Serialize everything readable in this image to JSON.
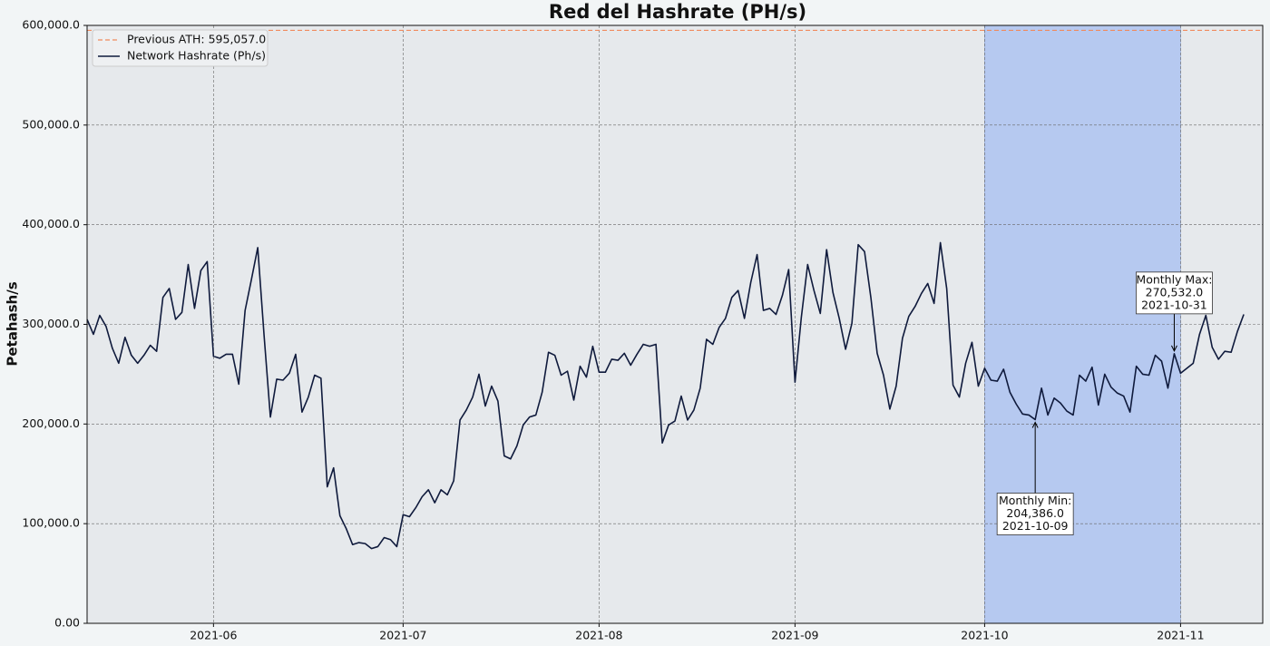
{
  "chart_data": {
    "type": "line",
    "title": "Red del Hashrate (PH/s)",
    "ylabel": "Petahash/s",
    "x": [
      "2021-05-12",
      "2021-05-13",
      "2021-05-14",
      "2021-05-15",
      "2021-05-16",
      "2021-05-17",
      "2021-05-18",
      "2021-05-19",
      "2021-05-20",
      "2021-05-21",
      "2021-05-22",
      "2021-05-23",
      "2021-05-24",
      "2021-05-25",
      "2021-05-26",
      "2021-05-27",
      "2021-05-28",
      "2021-05-29",
      "2021-05-30",
      "2021-05-31",
      "2021-06-01",
      "2021-06-02",
      "2021-06-03",
      "2021-06-04",
      "2021-06-05",
      "2021-06-06",
      "2021-06-07",
      "2021-06-08",
      "2021-06-09",
      "2021-06-10",
      "2021-06-11",
      "2021-06-12",
      "2021-06-13",
      "2021-06-14",
      "2021-06-15",
      "2021-06-16",
      "2021-06-17",
      "2021-06-18",
      "2021-06-19",
      "2021-06-20",
      "2021-06-21",
      "2021-06-22",
      "2021-06-23",
      "2021-06-24",
      "2021-06-25",
      "2021-06-26",
      "2021-06-27",
      "2021-06-28",
      "2021-06-29",
      "2021-06-30",
      "2021-07-01",
      "2021-07-02",
      "2021-07-03",
      "2021-07-04",
      "2021-07-05",
      "2021-07-06",
      "2021-07-07",
      "2021-07-08",
      "2021-07-09",
      "2021-07-10",
      "2021-07-11",
      "2021-07-12",
      "2021-07-13",
      "2021-07-14",
      "2021-07-15",
      "2021-07-16",
      "2021-07-17",
      "2021-07-18",
      "2021-07-19",
      "2021-07-20",
      "2021-07-21",
      "2021-07-22",
      "2021-07-23",
      "2021-07-24",
      "2021-07-25",
      "2021-07-26",
      "2021-07-27",
      "2021-07-28",
      "2021-07-29",
      "2021-07-30",
      "2021-07-31",
      "2021-08-01",
      "2021-08-02",
      "2021-08-03",
      "2021-08-04",
      "2021-08-05",
      "2021-08-06",
      "2021-08-07",
      "2021-08-08",
      "2021-08-09",
      "2021-08-10",
      "2021-08-11",
      "2021-08-12",
      "2021-08-13",
      "2021-08-14",
      "2021-08-15",
      "2021-08-16",
      "2021-08-17",
      "2021-08-18",
      "2021-08-19",
      "2021-08-20",
      "2021-08-21",
      "2021-08-22",
      "2021-08-23",
      "2021-08-24",
      "2021-08-25",
      "2021-08-26",
      "2021-08-27",
      "2021-08-28",
      "2021-08-29",
      "2021-08-30",
      "2021-08-31",
      "2021-09-01",
      "2021-09-02",
      "2021-09-03",
      "2021-09-04",
      "2021-09-05",
      "2021-09-06",
      "2021-09-07",
      "2021-09-08",
      "2021-09-09",
      "2021-09-10",
      "2021-09-11",
      "2021-09-12",
      "2021-09-13",
      "2021-09-14",
      "2021-09-15",
      "2021-09-16",
      "2021-09-17",
      "2021-09-18",
      "2021-09-19",
      "2021-09-20",
      "2021-09-21",
      "2021-09-22",
      "2021-09-23",
      "2021-09-24",
      "2021-09-25",
      "2021-09-26",
      "2021-09-27",
      "2021-09-28",
      "2021-09-29",
      "2021-09-30",
      "2021-10-01",
      "2021-10-02",
      "2021-10-03",
      "2021-10-04",
      "2021-10-05",
      "2021-10-06",
      "2021-10-07",
      "2021-10-08",
      "2021-10-09",
      "2021-10-10",
      "2021-10-11",
      "2021-10-12",
      "2021-10-13",
      "2021-10-14",
      "2021-10-15",
      "2021-10-16",
      "2021-10-17",
      "2021-10-18",
      "2021-10-19",
      "2021-10-20",
      "2021-10-21",
      "2021-10-22",
      "2021-10-23",
      "2021-10-24",
      "2021-10-25",
      "2021-10-26",
      "2021-10-27",
      "2021-10-28",
      "2021-10-29",
      "2021-10-30",
      "2021-10-31",
      "2021-11-01",
      "2021-11-02",
      "2021-11-03",
      "2021-11-04",
      "2021-11-05",
      "2021-11-06",
      "2021-11-07",
      "2021-11-08",
      "2021-11-09",
      "2021-11-10",
      "2021-11-11"
    ],
    "series": [
      {
        "name": "Network Hashrate (Ph/s)",
        "color": "#0f1a3c",
        "values": [
          305000,
          290000,
          309000,
          298000,
          276000,
          261000,
          287000,
          269000,
          261000,
          269000,
          279000,
          273000,
          327000,
          336000,
          305000,
          312000,
          360000,
          316000,
          354000,
          363000,
          268000,
          266000,
          270000,
          270000,
          240000,
          314000,
          345000,
          377000,
          289000,
          207000,
          245000,
          244000,
          251000,
          270000,
          212000,
          227000,
          249000,
          246000,
          137000,
          156000,
          108000,
          95000,
          79000,
          81000,
          80000,
          75000,
          77000,
          86000,
          84000,
          77000,
          109000,
          107000,
          116000,
          127000,
          134000,
          121000,
          134000,
          129000,
          143000,
          204000,
          214000,
          227000,
          250000,
          218000,
          238000,
          223000,
          168000,
          165000,
          178000,
          199000,
          207000,
          209000,
          232000,
          272000,
          269000,
          249000,
          253000,
          224000,
          258000,
          247000,
          278000,
          252000,
          252000,
          265000,
          264000,
          271000,
          259000,
          270000,
          280000,
          278000,
          280000,
          181000,
          199000,
          203000,
          228000,
          204000,
          214000,
          236000,
          285000,
          280000,
          297000,
          306000,
          327000,
          334000,
          306000,
          342000,
          370000,
          314000,
          316000,
          310000,
          329000,
          355000,
          242000,
          307000,
          360000,
          334000,
          311000,
          375000,
          332000,
          306000,
          275000,
          301000,
          380000,
          373000,
          327000,
          271000,
          249000,
          215000,
          238000,
          286000,
          308000,
          318000,
          331000,
          341000,
          321000,
          382000,
          336000,
          239000,
          227000,
          261000,
          282000,
          238000,
          256000,
          244000,
          243000,
          255000,
          232000,
          220000,
          210000,
          209000,
          204386,
          236000,
          209000,
          226000,
          221000,
          213000,
          209000,
          249000,
          243000,
          257000,
          219000,
          250000,
          237000,
          231000,
          228000,
          212000,
          258000,
          250000,
          249000,
          269000,
          263000,
          236000,
          270532,
          251000,
          256000,
          261000,
          290000,
          309000,
          277000,
          265000,
          273000,
          272000,
          293000,
          310000
        ]
      }
    ],
    "reference_line": {
      "name": "Previous ATH: 595,057.0",
      "value": 595057,
      "color": "#f08a5d"
    },
    "highlight": {
      "range": [
        "2021-10-01",
        "2021-11-01"
      ],
      "color": "#b6c9f0"
    },
    "annotations": [
      {
        "lines": [
          "Monthly Min:",
          "204,386.0",
          "2021-10-09"
        ],
        "x": "2021-10-09",
        "y": 204386
      },
      {
        "lines": [
          "Monthly Max:",
          "270,532.0",
          "2021-10-31"
        ],
        "x": "2021-10-31",
        "y": 270532
      }
    ],
    "xlim": [
      "2021-05-12",
      "2021-11-14"
    ],
    "xticks": [
      "2021-06",
      "2021-07",
      "2021-08",
      "2021-09",
      "2021-10",
      "2021-11"
    ],
    "ylim": [
      0,
      600000
    ],
    "yticks": [
      {
        "value": 0,
        "label": "0.00"
      },
      {
        "value": 100000,
        "label": "100,000.0"
      },
      {
        "value": 200000,
        "label": "200,000.0"
      },
      {
        "value": 300000,
        "label": "300,000.0"
      },
      {
        "value": 400000,
        "label": "400,000.0"
      },
      {
        "value": 500000,
        "label": "500,000.0"
      },
      {
        "value": 600000,
        "label": "600,000.0"
      }
    ],
    "grid": true,
    "legend": "upper left"
  }
}
